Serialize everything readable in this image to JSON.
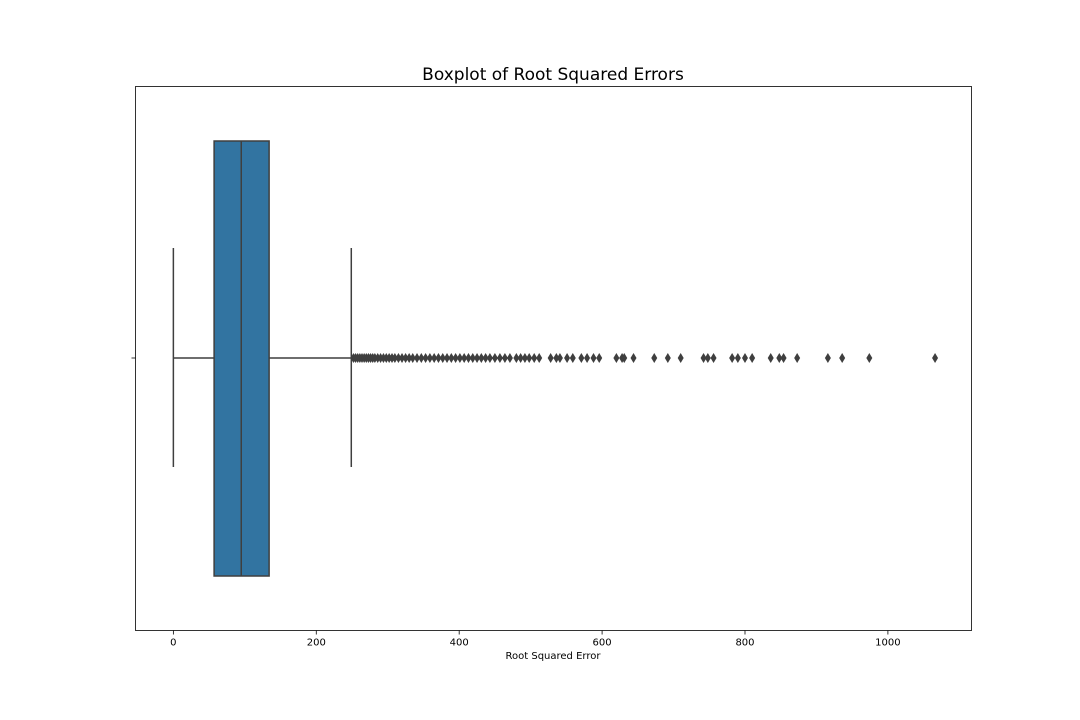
{
  "chart_data": {
    "type": "boxplot",
    "title": "Boxplot of Root Squared Errors",
    "xlabel": "Root Squared Error",
    "ylabel": "",
    "xlim": [
      -53,
      1117
    ],
    "xticks": [
      0,
      200,
      400,
      600,
      800,
      1000
    ],
    "grid": false,
    "legend": "none",
    "box": {
      "whisker_low": 0,
      "q1": 57,
      "median": 95,
      "q3": 134,
      "whisker_high": 249
    },
    "outliers": [
      252,
      255,
      258,
      261,
      264,
      267,
      270,
      273,
      276,
      279,
      282,
      286,
      290,
      294,
      298,
      302,
      306,
      310,
      315,
      320,
      325,
      330,
      335,
      341,
      347,
      353,
      359,
      365,
      371,
      377,
      383,
      389,
      395,
      401,
      407,
      413,
      419,
      425,
      431,
      437,
      443,
      450,
      457,
      464,
      471,
      480,
      486,
      492,
      498,
      505,
      512,
      528,
      536,
      541,
      551,
      559,
      571,
      579,
      588,
      596,
      620,
      628,
      631,
      644,
      673,
      692,
      710,
      742,
      748,
      756,
      782,
      790,
      800,
      810,
      836,
      848,
      854,
      873,
      916,
      936,
      974,
      1066
    ],
    "colors": {
      "box_fill": "#3274a1",
      "line": "#3f3f3f",
      "outlier": "#3f3f3f",
      "frame": "#000000"
    }
  }
}
